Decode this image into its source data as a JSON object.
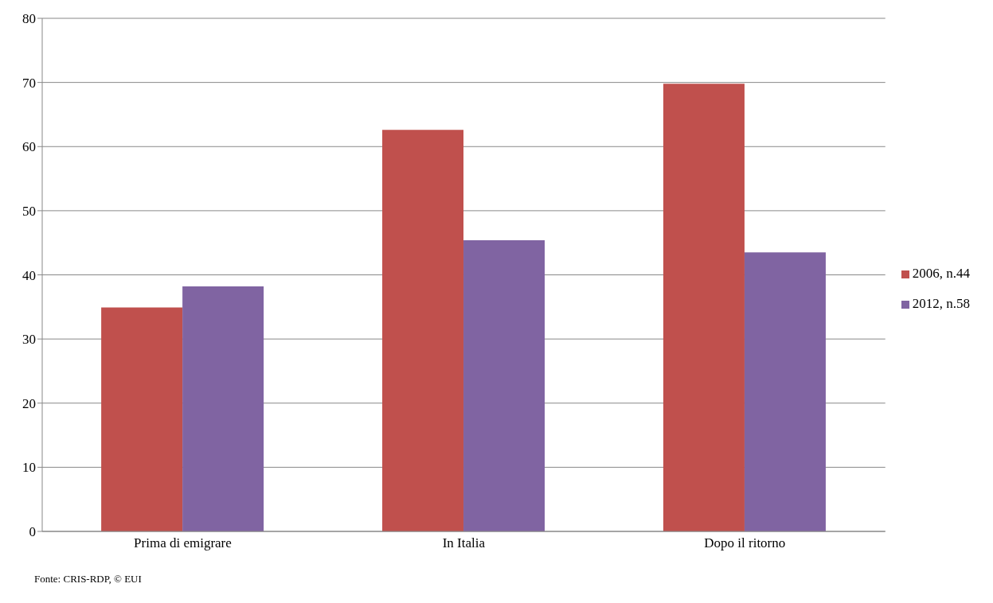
{
  "chart_data": {
    "type": "bar",
    "categories": [
      "Prima di emigrare",
      "In Italia",
      "Dopo il ritorno"
    ],
    "series": [
      {
        "name": "2006, n.44",
        "color": "#c0504d",
        "values": [
          34.9,
          62.6,
          69.8
        ]
      },
      {
        "name": "2012, n.58",
        "color": "#8064a2",
        "values": [
          38.2,
          45.4,
          43.5
        ]
      }
    ],
    "ylim": [
      0,
      80
    ],
    "yticks": [
      0,
      10,
      20,
      30,
      40,
      50,
      60,
      70,
      80
    ],
    "grid": "y",
    "legend": "right",
    "annotations": [
      "Fonte: CRIS-RDP,  © EUI"
    ]
  }
}
